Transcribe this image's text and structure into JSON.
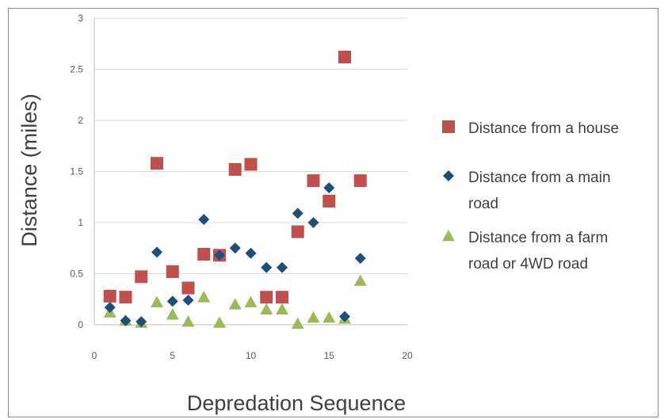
{
  "chart_data": {
    "type": "scatter",
    "title": "",
    "xlabel": "Depredation Sequence",
    "ylabel": "Distance (miles)",
    "xlim": [
      0,
      20
    ],
    "ylim": [
      0,
      3
    ],
    "xticks": [
      "0",
      "5",
      "10",
      "15",
      "20"
    ],
    "yticks": [
      "0",
      "0.5",
      "1",
      "1.5",
      "2",
      "2.5",
      "3"
    ],
    "grid": "horizontal",
    "legend_position": "right",
    "series": [
      {
        "name": "Distance from a house",
        "marker": "square",
        "color": "#C0504D",
        "points": [
          [
            1,
            0.28
          ],
          [
            2,
            0.27
          ],
          [
            3,
            0.47
          ],
          [
            4,
            1.58
          ],
          [
            5,
            0.52
          ],
          [
            6,
            0.36
          ],
          [
            7,
            0.69
          ],
          [
            8,
            0.68
          ],
          [
            9,
            1.52
          ],
          [
            10,
            1.57
          ],
          [
            11,
            0.27
          ],
          [
            12,
            0.27
          ],
          [
            13,
            0.91
          ],
          [
            14,
            1.41
          ],
          [
            15,
            1.21
          ],
          [
            16,
            2.62
          ],
          [
            17,
            1.41
          ]
        ]
      },
      {
        "name": "Distance from a main road",
        "marker": "diamond",
        "color": "#1F4E79",
        "points": [
          [
            1,
            0.17
          ],
          [
            2,
            0.04
          ],
          [
            3,
            0.03
          ],
          [
            4,
            0.71
          ],
          [
            5,
            0.23
          ],
          [
            6,
            0.24
          ],
          [
            7,
            1.03
          ],
          [
            8,
            0.68
          ],
          [
            9,
            0.75
          ],
          [
            10,
            0.7
          ],
          [
            11,
            0.56
          ],
          [
            12,
            0.56
          ],
          [
            13,
            1.09
          ],
          [
            14,
            1.0
          ],
          [
            15,
            1.34
          ],
          [
            16,
            0.08
          ],
          [
            17,
            0.65
          ]
        ]
      },
      {
        "name": "Distance from a farm road or 4WD road",
        "marker": "triangle",
        "color": "#9BBB59",
        "points": [
          [
            1,
            0.12
          ],
          [
            2,
            0.04
          ],
          [
            3,
            0.02
          ],
          [
            4,
            0.22
          ],
          [
            5,
            0.1
          ],
          [
            6,
            0.03
          ],
          [
            7,
            0.27
          ],
          [
            8,
            0.02
          ],
          [
            9,
            0.2
          ],
          [
            10,
            0.22
          ],
          [
            11,
            0.15
          ],
          [
            12,
            0.15
          ],
          [
            13,
            0.01
          ],
          [
            14,
            0.07
          ],
          [
            15,
            0.07
          ],
          [
            16,
            0.06
          ],
          [
            17,
            0.43
          ]
        ]
      }
    ],
    "legend_lines": [
      [
        "Distance from a house"
      ],
      [
        "Distance from a main",
        "road"
      ],
      [
        "Distance from a farm",
        "road or 4WD road"
      ]
    ]
  }
}
